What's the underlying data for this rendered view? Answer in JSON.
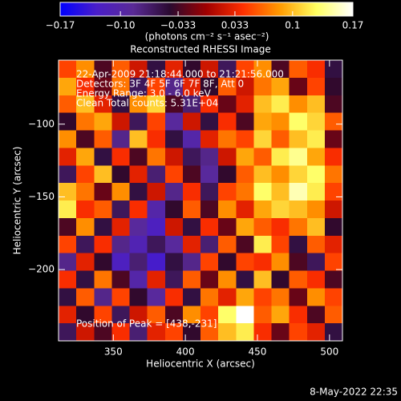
{
  "chart_data": {
    "type": "heatmap",
    "title": "Reconstructed RHESSI Image",
    "xlabel": "Heliocentric X (arcsec)",
    "ylabel": "Heliocentric Y (arcsec)",
    "xlim": [
      312,
      509
    ],
    "ylim": [
      -249,
      -56
    ],
    "xticks": [
      350,
      400,
      450,
      500
    ],
    "yticks": [
      {
        "value": -100,
        "label": "−100"
      },
      {
        "value": -150,
        "label": "−150"
      },
      {
        "value": -200,
        "label": "−200"
      }
    ],
    "annotations": [
      "22-Apr-2009 21:18:44.000 to 21:21:56.000",
      "Detectors: 3F 4F 5F 6F 7F 8F, Att 0",
      "Energy Range: 3.0 - 6.0 keV",
      "Clean     Total counts: 5.31E+04"
    ],
    "peak_label": "Position of Peak = [438,-231]",
    "colorbar": {
      "label": "(photons cm⁻² s⁻¹ asec⁻²)",
      "lim": [
        -0.17,
        0.17
      ],
      "ticks": [
        {
          "value": -0.17,
          "label": "−0.17"
        },
        {
          "value": -0.1,
          "label": "−0.10"
        },
        {
          "value": -0.033,
          "label": "−0.033"
        },
        0.033,
        0.1,
        0.17
      ],
      "colors": [
        "#0000ff",
        "#4a1ec8",
        "#5a2a96",
        "#2a0a30",
        "#a00000",
        "#ff3000",
        "#ff9a00",
        "#ffff60",
        "#ffffff"
      ]
    },
    "z": [
      [
        0.05,
        0.08,
        -0.03,
        0.06,
        0.02,
        -0.05,
        0.03,
        -0.04,
        0.02,
        -0.06,
        0.05,
        0.08,
        -0.03,
        0.06,
        0.04,
        -0.05
      ],
      [
        0.09,
        0.04,
        -0.02,
        0.07,
        -0.06,
        0.05,
        -0.08,
        0.03,
        -0.04,
        0.06,
        0.02,
        0.07,
        0.09,
        -0.02,
        0.05,
        -0.04
      ],
      [
        0.06,
        0.1,
        0.03,
        -0.05,
        0.08,
        0.11,
        -0.03,
        -0.07,
        0.04,
        -0.02,
        0.03,
        0.1,
        0.12,
        0.08,
        0.1,
        -0.03
      ],
      [
        -0.04,
        0.07,
        0.09,
        0.02,
        -0.06,
        0.05,
        -0.09,
        0.02,
        -0.05,
        0.04,
        -0.03,
        0.09,
        0.08,
        0.13,
        0.11,
        0.06
      ],
      [
        0.08,
        -0.03,
        0.06,
        -0.08,
        0.1,
        0.04,
        -0.05,
        -0.1,
        0.03,
        0.07,
        0.05,
        0.11,
        0.06,
        0.1,
        0.12,
        -0.02
      ],
      [
        0.03,
        0.09,
        -0.05,
        0.04,
        -0.03,
        0.07,
        0.02,
        -0.06,
        -0.08,
        0.02,
        0.09,
        0.06,
        0.12,
        0.14,
        0.09,
        0.04
      ],
      [
        -0.06,
        0.05,
        0.1,
        -0.04,
        0.03,
        -0.07,
        0.05,
        -0.03,
        -0.09,
        -0.04,
        0.06,
        0.1,
        0.08,
        0.11,
        0.13,
        0.07
      ],
      [
        0.1,
        0.07,
        -0.02,
        0.08,
        -0.05,
        0.02,
        -0.08,
        0.04,
        -0.06,
        0.05,
        0.07,
        0.13,
        0.1,
        0.15,
        0.12,
        0.05
      ],
      [
        0.12,
        0.04,
        0.06,
        -0.06,
        0.04,
        -0.1,
        -0.04,
        0.06,
        -0.03,
        0.08,
        0.03,
        0.09,
        0.11,
        0.1,
        0.08,
        0.02
      ],
      [
        -0.03,
        0.08,
        -0.05,
        0.03,
        -0.09,
        -0.12,
        0.02,
        -0.05,
        0.04,
        -0.02,
        0.09,
        0.06,
        0.04,
        0.07,
        0.1,
        -0.04
      ],
      [
        0.05,
        -0.06,
        0.04,
        -0.08,
        -0.11,
        -0.06,
        -0.09,
        0.03,
        -0.07,
        0.06,
        -0.03,
        0.12,
        0.05,
        -0.05,
        0.06,
        0.03
      ],
      [
        -0.08,
        0.03,
        -0.04,
        -0.12,
        -0.07,
        -0.13,
        -0.05,
        -0.08,
        0.05,
        -0.04,
        0.05,
        0.04,
        0.08,
        -0.03,
        -0.06,
        0.05
      ],
      [
        0.04,
        -0.05,
        0.07,
        -0.03,
        -0.1,
        0.03,
        -0.06,
        0.06,
        -0.02,
        0.08,
        -0.05,
        0.1,
        -0.04,
        0.06,
        0.04,
        -0.03
      ],
      [
        -0.05,
        0.06,
        -0.08,
        0.05,
        -0.04,
        -0.09,
        0.04,
        -0.05,
        0.07,
        0.03,
        0.09,
        0.05,
        0.07,
        -0.02,
        0.08,
        0.05
      ],
      [
        0.03,
        -0.04,
        0.05,
        -0.06,
        0.02,
        0.06,
        -0.03,
        0.08,
        0.05,
        0.13,
        0.17,
        0.06,
        0.09,
        0.04,
        -0.03,
        0.06
      ],
      [
        -0.06,
        0.02,
        -0.03,
        0.04,
        -0.07,
        0.03,
        0.05,
        -0.04,
        0.06,
        0.1,
        0.12,
        0.04,
        -0.02,
        0.05,
        0.03,
        -0.05
      ]
    ]
  },
  "footer": {
    "timestamp": "8-May-2022 22:35"
  }
}
